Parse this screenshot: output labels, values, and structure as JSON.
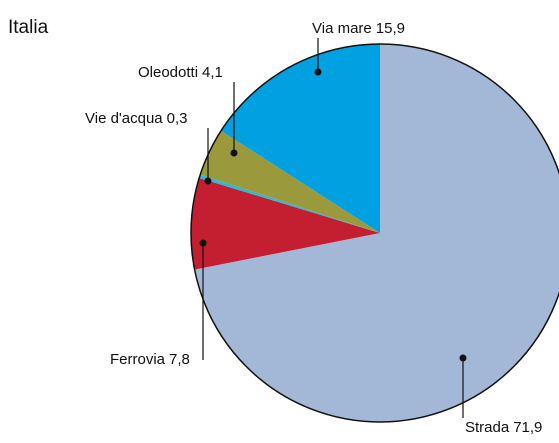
{
  "chart_data": {
    "type": "pie",
    "title": "Italia",
    "categories": [
      "Strada",
      "Ferrovia",
      "Vie d'acqua",
      "Oleodotti",
      "Via mare"
    ],
    "values": [
      71.9,
      7.8,
      0.3,
      4.1,
      15.9
    ],
    "value_labels": [
      "71,9",
      "7,8",
      "0,3",
      "4,1",
      "15,9"
    ],
    "colors": [
      "#a3b8d6",
      "#c41f30",
      "#2cb8d8",
      "#9a9a3c",
      "#00a0e1"
    ]
  }
}
